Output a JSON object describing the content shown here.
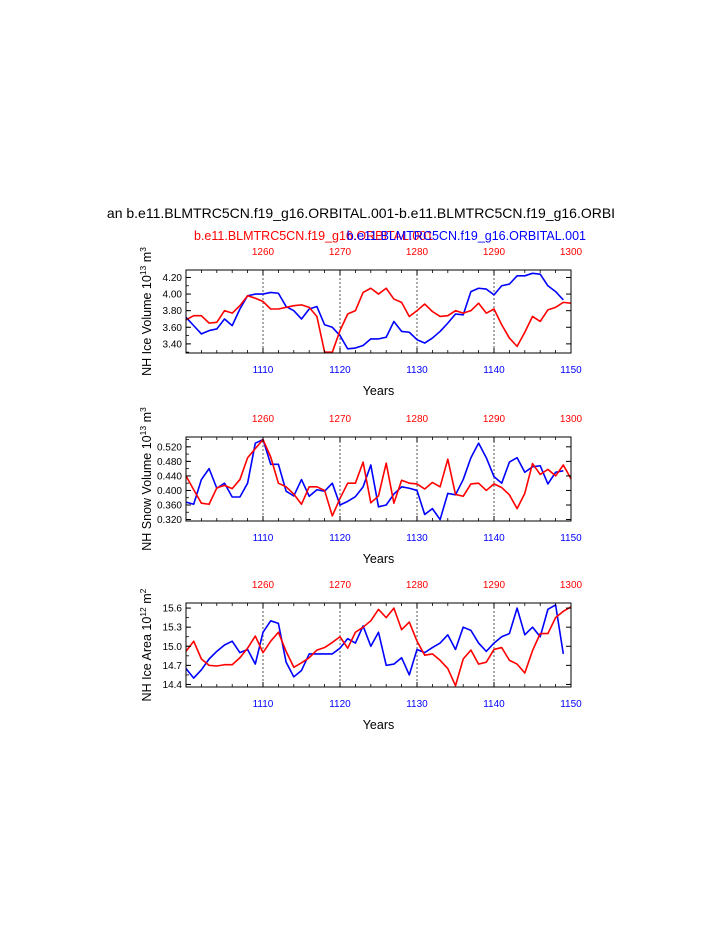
{
  "title": "an b.e11.BLMTRC5CN.f19_g16.ORBITAL.001-b.e11.BLMTRC5CN.f19_g16.ORBI",
  "subtitle_red": "b.e11.BLMTRC5CN.f19_g16.ORBITAL.001",
  "subtitle_blue": "b.e11.BLMTRC5CN.f19_g16.ORBITAL.001",
  "colors": {
    "red": "#ff0000",
    "blue": "#0000ff",
    "axis": "#000000"
  },
  "chart_data": [
    {
      "type": "line",
      "ylabel": "NH Ice Volume 10",
      "ylabel_exp": "13",
      "ylabel_unit": " m",
      "ylabel_unit_exp": "3",
      "xlabel": "Years",
      "ylim": [
        3.29,
        4.29
      ],
      "yticks": [
        3.4,
        3.6,
        3.8,
        4.0,
        4.2
      ],
      "ytick_labels": [
        "3.40",
        "3.60",
        "3.80",
        "4.00",
        "4.20"
      ],
      "x_bottom": {
        "range": [
          1100,
          1150
        ],
        "ticks": [
          1110,
          1120,
          1130,
          1140,
          1150
        ]
      },
      "x_top": {
        "range": [
          1250,
          1300
        ],
        "ticks": [
          1260,
          1270,
          1280,
          1290,
          1300
        ]
      },
      "series": [
        {
          "name": "blue",
          "axis": "bottom",
          "color": "#0000ff",
          "values": [
            3.72,
            3.62,
            3.52,
            3.56,
            3.58,
            3.7,
            3.62,
            3.82,
            3.98,
            4.0,
            4.0,
            4.02,
            4.01,
            3.85,
            3.8,
            3.7,
            3.82,
            3.85,
            3.63,
            3.6,
            3.5,
            3.34,
            3.35,
            3.38,
            3.46,
            3.46,
            3.48,
            3.67,
            3.55,
            3.54,
            3.45,
            3.41,
            3.47,
            3.55,
            3.65,
            3.76,
            3.75,
            4.03,
            4.07,
            4.06,
            3.99,
            4.1,
            4.12,
            4.22,
            4.22,
            4.25,
            4.24,
            4.1,
            4.03,
            3.93
          ]
        },
        {
          "name": "red",
          "axis": "top",
          "color": "#ff0000",
          "values": [
            3.69,
            3.74,
            3.74,
            3.65,
            3.66,
            3.8,
            3.77,
            3.86,
            3.98,
            3.95,
            3.91,
            3.82,
            3.82,
            3.84,
            3.86,
            3.87,
            3.84,
            3.73,
            3.3,
            3.3,
            3.56,
            3.76,
            3.8,
            4.02,
            4.07,
            4.0,
            4.07,
            3.94,
            3.9,
            3.73,
            3.8,
            3.88,
            3.79,
            3.73,
            3.74,
            3.8,
            3.77,
            3.8,
            3.89,
            3.77,
            3.82,
            3.63,
            3.47,
            3.37,
            3.54,
            3.73,
            3.67,
            3.81,
            3.84,
            3.9,
            3.89
          ]
        }
      ]
    },
    {
      "type": "line",
      "ylabel": "NH Snow Volume 10",
      "ylabel_exp": "13",
      "ylabel_unit": " m",
      "ylabel_unit_exp": "3",
      "xlabel": "Years",
      "ylim": [
        0.316,
        0.547
      ],
      "yticks": [
        0.32,
        0.36,
        0.4,
        0.44,
        0.48,
        0.52
      ],
      "ytick_labels": [
        "0.320",
        "0.360",
        "0.400",
        "0.440",
        "0.480",
        "0.520"
      ],
      "x_bottom": {
        "range": [
          1100,
          1150
        ],
        "ticks": [
          1110,
          1120,
          1130,
          1140,
          1150
        ]
      },
      "x_top": {
        "range": [
          1250,
          1300
        ],
        "ticks": [
          1260,
          1270,
          1280,
          1290,
          1300
        ]
      },
      "series": [
        {
          "name": "blue",
          "axis": "bottom",
          "color": "#0000ff",
          "values": [
            0.368,
            0.362,
            0.43,
            0.46,
            0.406,
            0.42,
            0.382,
            0.382,
            0.42,
            0.53,
            0.54,
            0.472,
            0.472,
            0.398,
            0.385,
            0.43,
            0.384,
            0.402,
            0.398,
            0.42,
            0.36,
            0.37,
            0.383,
            0.41,
            0.47,
            0.355,
            0.36,
            0.39,
            0.41,
            0.406,
            0.4,
            0.334,
            0.35,
            0.32,
            0.392,
            0.388,
            0.43,
            0.49,
            0.53,
            0.49,
            0.438,
            0.42,
            0.478,
            0.49,
            0.45,
            0.465,
            0.468,
            0.418,
            0.45,
            0.454
          ]
        },
        {
          "name": "red",
          "axis": "top",
          "color": "#ff0000",
          "values": [
            0.44,
            0.402,
            0.365,
            0.362,
            0.407,
            0.414,
            0.405,
            0.43,
            0.49,
            0.515,
            0.54,
            0.492,
            0.42,
            0.41,
            0.39,
            0.362,
            0.41,
            0.41,
            0.4,
            0.33,
            0.378,
            0.42,
            0.42,
            0.478,
            0.366,
            0.385,
            0.475,
            0.365,
            0.428,
            0.42,
            0.418,
            0.404,
            0.422,
            0.41,
            0.486,
            0.389,
            0.384,
            0.418,
            0.42,
            0.4,
            0.418,
            0.408,
            0.388,
            0.35,
            0.392,
            0.474,
            0.444,
            0.458,
            0.44,
            0.47,
            0.432
          ]
        }
      ]
    },
    {
      "type": "line",
      "ylabel": "NH Ice Area 10",
      "ylabel_exp": "12",
      "ylabel_unit": " m",
      "ylabel_unit_exp": "2",
      "xlabel": "Years",
      "ylim": [
        14.36,
        15.68
      ],
      "yticks": [
        14.4,
        14.7,
        15.0,
        15.3,
        15.6
      ],
      "ytick_labels": [
        "14.4",
        "14.7",
        "15.0",
        "15.3",
        "15.6"
      ],
      "x_bottom": {
        "range": [
          1100,
          1150
        ],
        "ticks": [
          1110,
          1120,
          1130,
          1140,
          1150
        ]
      },
      "x_top": {
        "range": [
          1250,
          1300
        ],
        "ticks": [
          1260,
          1270,
          1280,
          1290,
          1300
        ]
      },
      "series": [
        {
          "name": "blue",
          "axis": "bottom",
          "color": "#0000ff",
          "values": [
            14.65,
            14.5,
            14.63,
            14.8,
            14.92,
            15.02,
            15.08,
            14.9,
            14.95,
            14.72,
            15.22,
            15.4,
            15.36,
            14.75,
            14.52,
            14.62,
            14.88,
            14.88,
            14.88,
            14.88,
            14.97,
            15.12,
            15.05,
            15.32,
            15.0,
            15.22,
            14.7,
            14.72,
            14.82,
            14.55,
            14.95,
            14.9,
            14.98,
            15.05,
            15.18,
            14.95,
            15.3,
            15.25,
            15.05,
            14.92,
            15.05,
            15.15,
            15.2,
            15.6,
            15.18,
            15.3,
            15.15,
            15.58,
            15.65,
            14.88
          ]
        },
        {
          "name": "red",
          "axis": "top",
          "color": "#ff0000",
          "values": [
            14.92,
            15.08,
            14.8,
            14.7,
            14.69,
            14.71,
            14.71,
            14.82,
            14.97,
            15.16,
            14.9,
            15.08,
            15.22,
            14.92,
            14.67,
            14.74,
            14.82,
            14.94,
            14.98,
            15.06,
            15.15,
            14.97,
            15.22,
            15.3,
            15.4,
            15.58,
            15.45,
            15.6,
            15.26,
            15.38,
            15.08,
            14.86,
            14.88,
            14.78,
            14.65,
            14.38,
            14.8,
            14.94,
            14.72,
            14.75,
            14.95,
            14.98,
            14.78,
            14.72,
            14.58,
            14.93,
            15.2,
            15.2,
            15.45,
            15.55,
            15.62
          ]
        }
      ]
    }
  ]
}
